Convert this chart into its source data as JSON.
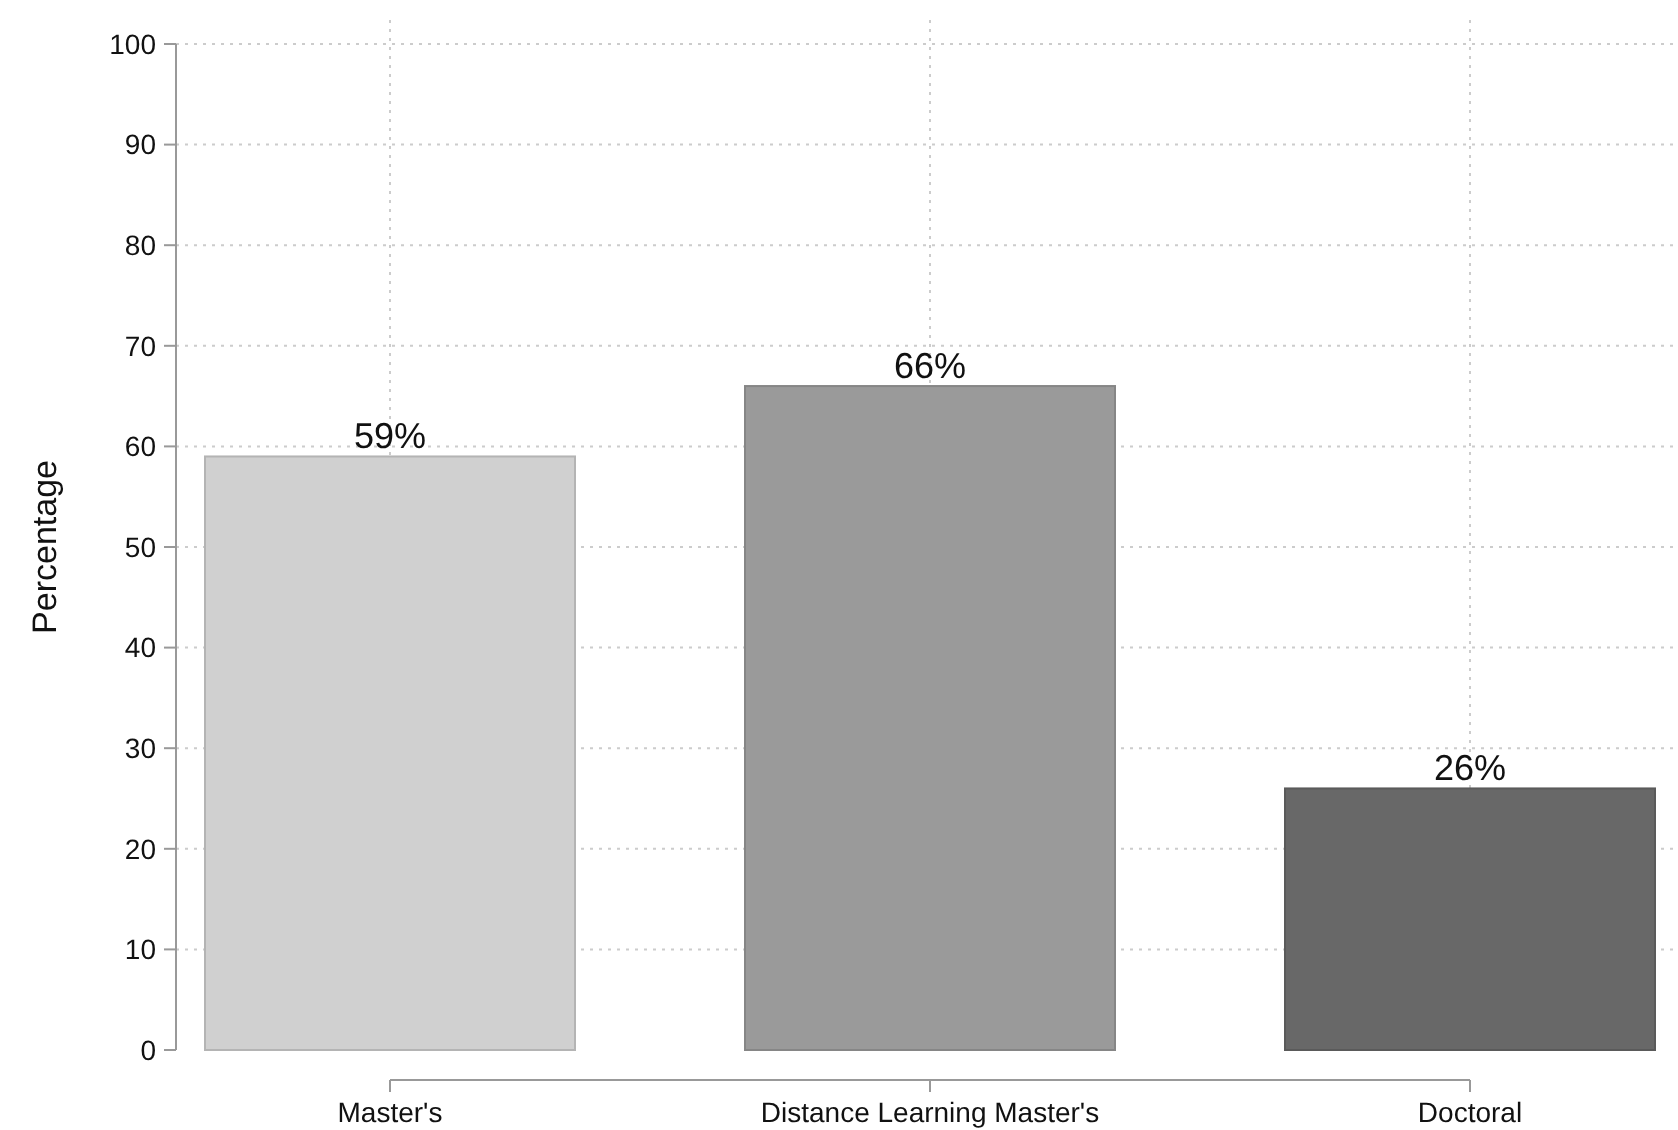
{
  "chart_data": {
    "type": "bar",
    "ylabel": "Percentage",
    "categories": [
      "Master's",
      "Distance Learning Master's",
      "Doctoral"
    ],
    "values": [
      59,
      66,
      26
    ],
    "colors": [
      "#d0d0d0",
      "#9a9a9a",
      "#686868"
    ],
    "value_labels": [
      "59%",
      "66%",
      "26%"
    ],
    "ylim": [
      0,
      100
    ],
    "yticks": [
      0,
      10,
      20,
      30,
      40,
      50,
      60,
      70,
      80,
      90,
      100
    ],
    "grid": true
  }
}
